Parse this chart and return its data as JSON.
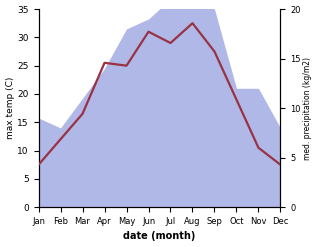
{
  "months": [
    "Jan",
    "Feb",
    "Mar",
    "Apr",
    "May",
    "Jun",
    "Jul",
    "Aug",
    "Sep",
    "Oct",
    "Nov",
    "Dec"
  ],
  "temperature": [
    7.5,
    12.0,
    16.5,
    25.5,
    25.0,
    31.0,
    29.0,
    32.5,
    27.5,
    19.0,
    10.5,
    7.5
  ],
  "precipitation": [
    9,
    8,
    11,
    14,
    18,
    19,
    21,
    21,
    20,
    12,
    12,
    8
  ],
  "temp_color": "#993344",
  "precip_color": "#b0b8e8",
  "background_color": "#ffffff",
  "temp_ylim": [
    0,
    35
  ],
  "temp_yticks": [
    0,
    5,
    10,
    15,
    20,
    25,
    30,
    35
  ],
  "precip_ylim": [
    0,
    20
  ],
  "precip_yticks": [
    0,
    5,
    10,
    15,
    20
  ],
  "xlabel": "date (month)",
  "ylabel_left": "max temp (C)",
  "ylabel_right": "med. precipitation (kg/m2)",
  "temp_linewidth": 1.6
}
